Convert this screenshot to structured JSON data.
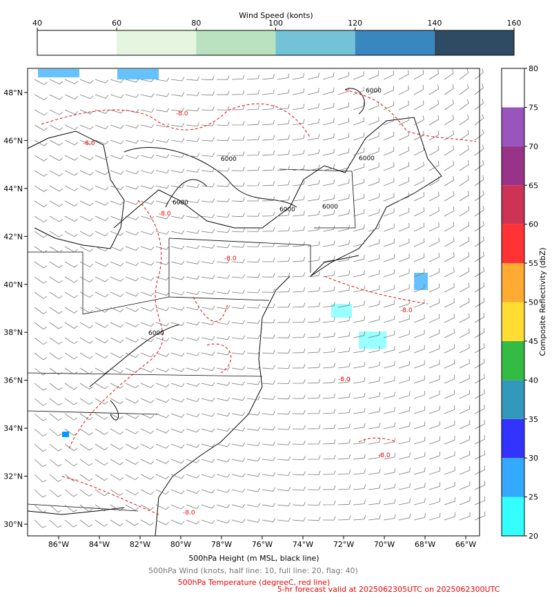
{
  "wind_colorbar": {
    "label": "Wind Speed (konts)",
    "ticks": [
      40,
      60,
      80,
      100,
      120,
      140,
      160
    ],
    "colors": [
      "#ffffff",
      "#e5f5e0",
      "#b9e2c1",
      "#74c2d8",
      "#3a87c0",
      "#2f4b63"
    ]
  },
  "reflectivity_colorbar": {
    "label": "Composite Reflectivity (dbZ)",
    "ticks": [
      20,
      25,
      30,
      35,
      40,
      45,
      50,
      55,
      60,
      65,
      70,
      75,
      80
    ],
    "colors": [
      "#33ffff",
      "#33aaff",
      "#3333ff",
      "#3399bb",
      "#33bb44",
      "#ffdd33",
      "#ffaa33",
      "#ff3333",
      "#cc3355",
      "#993388",
      "#9955bb",
      "#ffffff"
    ]
  },
  "map": {
    "lon_ticks": [
      {
        "value": -86,
        "label": "86°W"
      },
      {
        "value": -84,
        "label": "84°W"
      },
      {
        "value": -82,
        "label": "82°W"
      },
      {
        "value": -80,
        "label": "80°W"
      },
      {
        "value": -78,
        "label": "78°W"
      },
      {
        "value": -76,
        "label": "76°W"
      },
      {
        "value": -74,
        "label": "74°W"
      },
      {
        "value": -72,
        "label": "72°W"
      },
      {
        "value": -70,
        "label": "70°W"
      },
      {
        "value": -68,
        "label": "68°W"
      },
      {
        "value": -66,
        "label": "66°W"
      }
    ],
    "lat_ticks": [
      {
        "value": 30,
        "label": "30°N"
      },
      {
        "value": 32,
        "label": "32°N"
      },
      {
        "value": 34,
        "label": "34°N"
      },
      {
        "value": 36,
        "label": "36°N"
      },
      {
        "value": 38,
        "label": "38°N"
      },
      {
        "value": 40,
        "label": "40°N"
      },
      {
        "value": 42,
        "label": "42°N"
      },
      {
        "value": 44,
        "label": "44°N"
      },
      {
        "value": 46,
        "label": "46°N"
      },
      {
        "value": 48,
        "label": "48°N"
      }
    ],
    "height_contour_labels": [
      "6000",
      "6000",
      "6000",
      "6000",
      "6000",
      "6000",
      "6000"
    ],
    "temperature_contour_labels": [
      "-8.0",
      "-8.0",
      "-8.0",
      "-8.0",
      "-8.0",
      "-8.0",
      "-8.0",
      "-8.0"
    ]
  },
  "captions": [
    "500hPa Height (m MSL, black line)",
    "500hPa Wind (knots, half line: 10, full line: 20, flag: 40)",
    "500hPa Temperature (degreeC, red line)",
    "5-hr forecast valid at 2025062305UTC on 2025062300UTC"
  ]
}
